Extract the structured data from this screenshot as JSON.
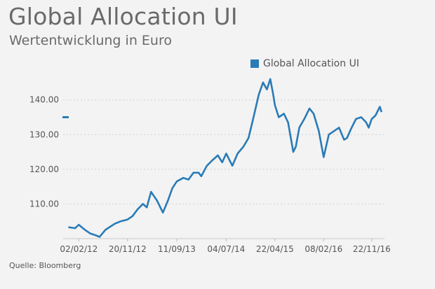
{
  "chart_data": {
    "type": "line",
    "title": "Global Allocation UI",
    "subtitle": "Wertentwicklung in Euro",
    "source": "Quelle: Bloomberg",
    "legend": {
      "position": "top-right",
      "entries": [
        "Global Allocation UI"
      ]
    },
    "xlabel": "",
    "ylabel": "",
    "grid": {
      "horizontal": true,
      "style": "dotted"
    },
    "ylim": [
      100,
      147
    ],
    "yticks": [
      110,
      120,
      130,
      140
    ],
    "ytick_labels": [
      "110.00",
      "120.00",
      "130.00",
      "140.00"
    ],
    "xlim": [
      "2011-11-21",
      "2017-01-25"
    ],
    "xticks": [
      "2012-02-02",
      "2012-11-20",
      "2013-09-11",
      "2014-07-04",
      "2015-04-22",
      "2016-02-08",
      "2016-11-22"
    ],
    "xtick_labels": [
      "02/02/12",
      "20/11/12",
      "11/09/13",
      "04/07/14",
      "22/04/15",
      "08/02/16",
      "22/11/16"
    ],
    "series": [
      {
        "name": "Global Allocation UI",
        "color": "#2a7bb6",
        "x": [
          "2011-12-01",
          "2012-01-10",
          "2012-02-02",
          "2012-03-10",
          "2012-04-10",
          "2012-05-10",
          "2012-06-05",
          "2012-07-10",
          "2012-08-10",
          "2012-09-05",
          "2012-10-10",
          "2012-11-20",
          "2012-12-20",
          "2013-01-20",
          "2013-02-20",
          "2013-03-15",
          "2013-04-10",
          "2013-05-15",
          "2013-06-20",
          "2013-07-20",
          "2013-08-15",
          "2013-09-11",
          "2013-10-20",
          "2013-11-20",
          "2013-12-20",
          "2014-01-20",
          "2014-02-05",
          "2014-03-10",
          "2014-04-10",
          "2014-05-15",
          "2014-06-10",
          "2014-07-04",
          "2014-08-10",
          "2014-09-10",
          "2014-10-15",
          "2014-11-15",
          "2014-12-10",
          "2015-01-15",
          "2015-02-10",
          "2015-03-05",
          "2015-03-25",
          "2015-04-10",
          "2015-04-22",
          "2015-05-15",
          "2015-06-15",
          "2015-07-10",
          "2015-08-10",
          "2015-08-25",
          "2015-09-15",
          "2015-10-15",
          "2015-11-15",
          "2015-12-10",
          "2016-01-10",
          "2016-02-08",
          "2016-03-10",
          "2016-04-10",
          "2016-05-10",
          "2016-06-10",
          "2016-06-27",
          "2016-07-20",
          "2016-08-20",
          "2016-09-20",
          "2016-10-20",
          "2016-11-04",
          "2016-11-22",
          "2016-12-15",
          "2017-01-10",
          "2017-01-20"
        ],
        "y": [
          103.3,
          103.0,
          104.0,
          102.5,
          101.5,
          101.0,
          100.5,
          102.5,
          103.5,
          104.3,
          105.0,
          105.5,
          106.5,
          108.5,
          110.0,
          109.0,
          113.5,
          111.0,
          107.5,
          111.0,
          114.5,
          116.5,
          117.5,
          117.0,
          119.0,
          119.0,
          118.0,
          121.0,
          122.5,
          124.0,
          122.0,
          124.5,
          121.0,
          124.5,
          126.5,
          129.0,
          134.0,
          141.5,
          145.0,
          143.0,
          146.0,
          142.0,
          138.5,
          135.0,
          136.0,
          133.5,
          125.0,
          126.5,
          132.0,
          134.5,
          137.5,
          136.0,
          131.0,
          123.5,
          130.0,
          131.0,
          132.0,
          128.5,
          129.0,
          131.5,
          134.5,
          135.0,
          133.5,
          132.0,
          134.5,
          135.5,
          138.0,
          136.5
        ]
      }
    ]
  }
}
